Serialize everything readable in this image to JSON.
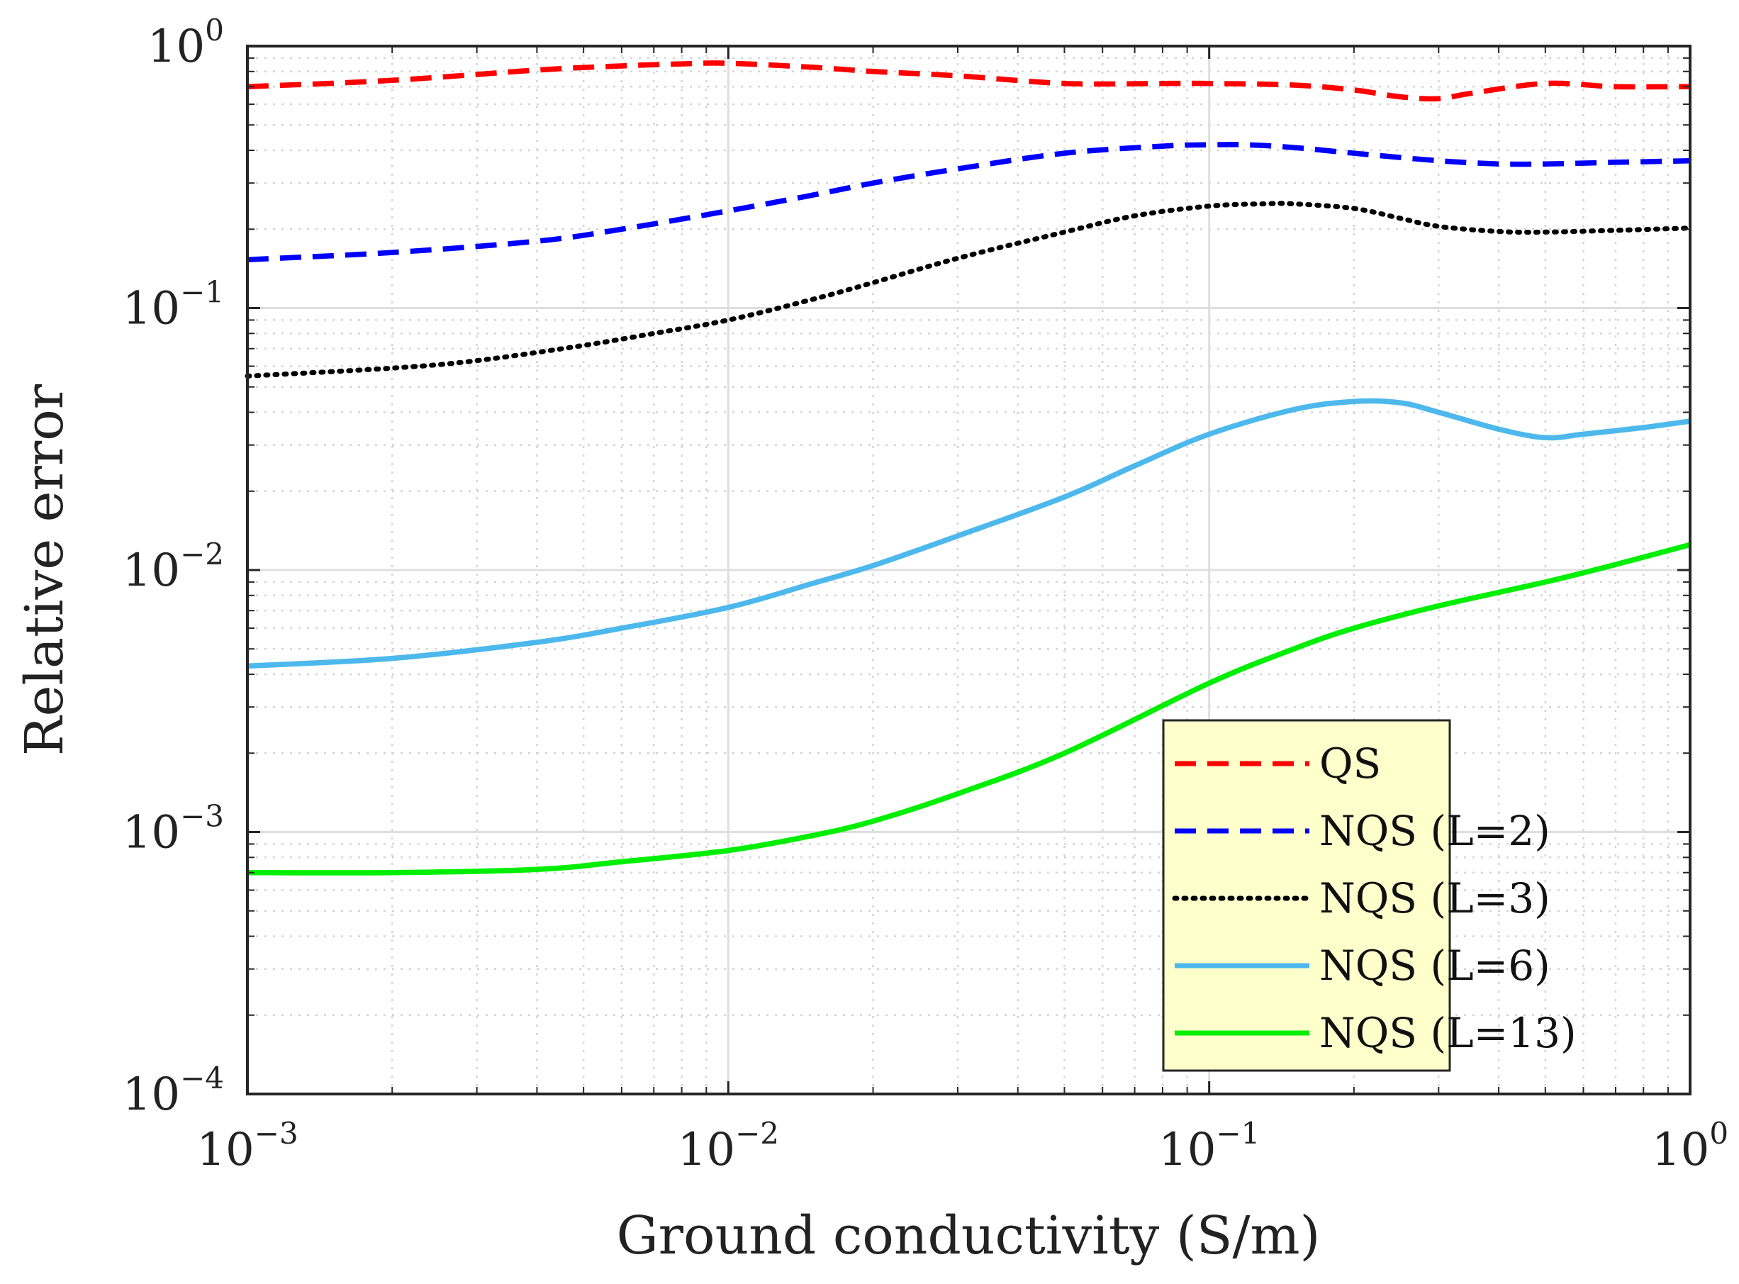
{
  "chart_data": {
    "type": "line",
    "title": "",
    "xlabel": "Ground conductivity (S/m)",
    "ylabel": "Relative error",
    "xscale": "log",
    "yscale": "log",
    "xlim": [
      0.001,
      1
    ],
    "ylim": [
      0.0001,
      1
    ],
    "grid": true,
    "minor_grid": true,
    "legend_location": "bottom-right",
    "x_ticks": [
      {
        "base": "10",
        "exp": "−3",
        "value": 0.001
      },
      {
        "base": "10",
        "exp": "−2",
        "value": 0.01
      },
      {
        "base": "10",
        "exp": "−1",
        "value": 0.1
      },
      {
        "base": "10",
        "exp": "0",
        "value": 1
      }
    ],
    "y_ticks": [
      {
        "base": "10",
        "exp": "−4",
        "value": 0.0001
      },
      {
        "base": "10",
        "exp": "−3",
        "value": 0.001
      },
      {
        "base": "10",
        "exp": "−2",
        "value": 0.01
      },
      {
        "base": "10",
        "exp": "−1",
        "value": 0.1
      },
      {
        "base": "10",
        "exp": "0",
        "value": 1
      }
    ],
    "series": [
      {
        "name": "QS",
        "color": "#ff0000",
        "style": "dashed",
        "x": [
          0.001,
          0.002,
          0.004,
          0.006,
          0.008,
          0.01,
          0.015,
          0.02,
          0.03,
          0.05,
          0.08,
          0.1,
          0.15,
          0.2,
          0.25,
          0.3,
          0.35,
          0.5,
          0.7,
          1.0
        ],
        "y": [
          0.7,
          0.74,
          0.81,
          0.84,
          0.855,
          0.86,
          0.83,
          0.8,
          0.77,
          0.72,
          0.72,
          0.72,
          0.71,
          0.68,
          0.64,
          0.63,
          0.66,
          0.72,
          0.7,
          0.7
        ]
      },
      {
        "name": "NQS (L=2)",
        "color": "#0000ff",
        "style": "dashed",
        "x": [
          0.001,
          0.002,
          0.004,
          0.006,
          0.01,
          0.015,
          0.02,
          0.03,
          0.05,
          0.08,
          0.1,
          0.12,
          0.15,
          0.2,
          0.3,
          0.4,
          0.5,
          0.7,
          1.0
        ],
        "y": [
          0.153,
          0.163,
          0.18,
          0.2,
          0.235,
          0.27,
          0.3,
          0.34,
          0.39,
          0.415,
          0.42,
          0.42,
          0.41,
          0.39,
          0.365,
          0.355,
          0.355,
          0.36,
          0.365
        ]
      },
      {
        "name": "NQS (L=3)",
        "color": "#000000",
        "style": "dotted",
        "x": [
          0.001,
          0.002,
          0.003,
          0.005,
          0.007,
          0.01,
          0.015,
          0.02,
          0.03,
          0.05,
          0.07,
          0.1,
          0.13,
          0.15,
          0.2,
          0.25,
          0.3,
          0.4,
          0.5,
          0.7,
          1.0
        ],
        "y": [
          0.055,
          0.059,
          0.063,
          0.072,
          0.08,
          0.09,
          0.108,
          0.125,
          0.155,
          0.195,
          0.225,
          0.245,
          0.25,
          0.25,
          0.24,
          0.22,
          0.205,
          0.196,
          0.195,
          0.198,
          0.202
        ]
      },
      {
        "name": "NQS (L=6)",
        "color": "#4db8ec",
        "style": "solid",
        "x": [
          0.001,
          0.002,
          0.004,
          0.006,
          0.01,
          0.015,
          0.02,
          0.03,
          0.05,
          0.07,
          0.1,
          0.15,
          0.2,
          0.25,
          0.3,
          0.4,
          0.5,
          0.6,
          0.8,
          1.0
        ],
        "y": [
          0.0043,
          0.0046,
          0.0053,
          0.006,
          0.0072,
          0.0089,
          0.0104,
          0.0135,
          0.019,
          0.025,
          0.033,
          0.041,
          0.044,
          0.0435,
          0.04,
          0.0345,
          0.032,
          0.033,
          0.035,
          0.037
        ]
      },
      {
        "name": "NQS (L=13)",
        "color": "#00ee00",
        "style": "solid",
        "x": [
          0.001,
          0.002,
          0.004,
          0.006,
          0.01,
          0.015,
          0.02,
          0.03,
          0.05,
          0.1,
          0.15,
          0.2,
          0.3,
          0.5,
          0.7,
          1.0
        ],
        "y": [
          0.0007,
          0.0007,
          0.00072,
          0.00077,
          0.00085,
          0.00097,
          0.0011,
          0.0014,
          0.002,
          0.0037,
          0.005,
          0.006,
          0.0073,
          0.009,
          0.0105,
          0.0125
        ]
      }
    ]
  }
}
